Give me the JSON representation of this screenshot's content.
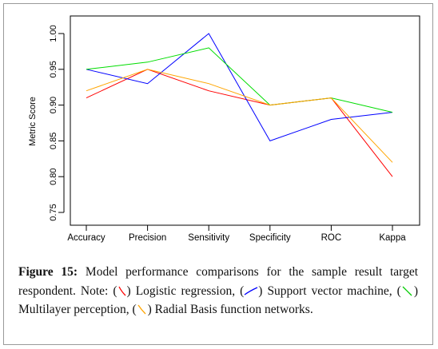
{
  "chart_data": {
    "type": "line",
    "ylabel": "Metric Score",
    "xlabel": "",
    "categories": [
      "Accuracy",
      "Precision",
      "Sensitivity",
      "Specificity",
      "ROC",
      "Kappa"
    ],
    "ylim": [
      0.75,
      1.0
    ],
    "yticks": [
      "0.75",
      "0.80",
      "0.85",
      "0.90",
      "0.95",
      "1.00"
    ],
    "grid": false,
    "series": [
      {
        "color": "#ff0000",
        "values": [
          0.91,
          0.95,
          0.92,
          0.9,
          0.91,
          0.8
        ]
      },
      {
        "color": "#0000ff",
        "values": [
          0.95,
          0.93,
          1.0,
          0.85,
          0.88,
          0.89
        ]
      },
      {
        "color": "#00dd00",
        "values": [
          0.95,
          0.96,
          0.98,
          0.9,
          0.91,
          0.89
        ]
      },
      {
        "color": "#ffa500",
        "values": [
          0.92,
          0.95,
          0.93,
          0.9,
          0.91,
          0.82
        ]
      }
    ]
  },
  "caption": {
    "figure_label": "Figure 15:",
    "text_1": "Model performance comparisons for the sample result target respondent. Note: (",
    "logistic": ") Logistic regression, (",
    "svm": ") Support vector machine, (",
    "mlp": ") Multilayer perception, (",
    "rbf": ") Radial Basis function networks."
  }
}
